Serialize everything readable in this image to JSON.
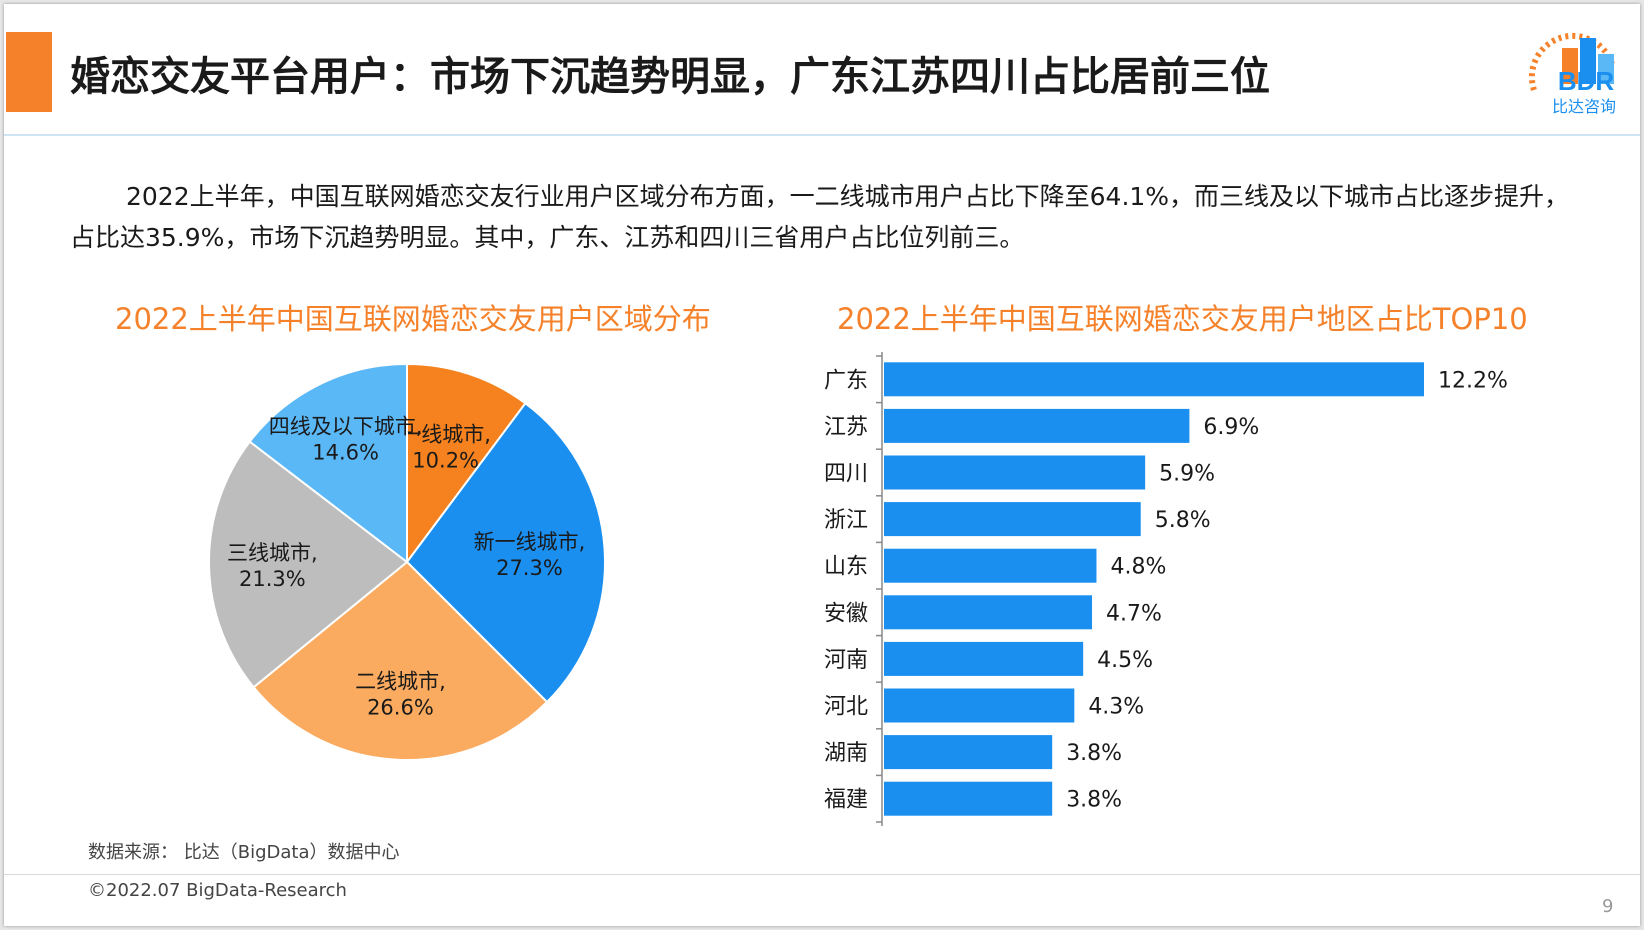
{
  "header": {
    "title": "婚恋交友平台用户：市场下沉趋势明显，广东江苏四川占比居前三位",
    "logo_text": "BDR",
    "logo_subtext": "比达咨询"
  },
  "intro": {
    "text": "2022上半年，中国互联网婚恋交友行业用户区域分布方面，一二线城市用户占比下降至64.1%，而三线及以下城市占比逐步提升，占比达35.9%，市场下沉趋势明显。其中，广东、江苏和四川三省用户占比位列前三。"
  },
  "chart_data": [
    {
      "type": "pie",
      "title": "2022上半年中国互联网婚恋交友用户区域分布",
      "slices": [
        {
          "label": "一线城市",
          "value": 10.2,
          "display": "10.2%",
          "color": "#f5821f"
        },
        {
          "label": "新一线城市",
          "value": 27.3,
          "display": "27.3%",
          "color": "#1a8ff0"
        },
        {
          "label": "二线城市",
          "value": 26.6,
          "display": "26.6%",
          "color": "#fbab5f"
        },
        {
          "label": "三线城市",
          "value": 21.3,
          "display": "21.3%",
          "color": "#bdbdbd"
        },
        {
          "label": "四线及以下城市",
          "value": 14.6,
          "display": "14.6%",
          "color": "#5bb8f7"
        }
      ]
    },
    {
      "type": "bar",
      "orientation": "horizontal",
      "title": "2022上半年中国互联网婚恋交友用户地区占比TOP10",
      "categories": [
        "广东",
        "江苏",
        "四川",
        "浙江",
        "山东",
        "安徽",
        "河南",
        "河北",
        "湖南",
        "福建"
      ],
      "values": [
        12.2,
        6.9,
        5.9,
        5.8,
        4.8,
        4.7,
        4.5,
        4.3,
        3.8,
        3.8
      ],
      "value_labels": [
        "12.2%",
        "6.9%",
        "5.9%",
        "5.8%",
        "4.8%",
        "4.7%",
        "4.5%",
        "4.3%",
        "3.8%",
        "3.8%"
      ],
      "bar_color": "#1a8ff0"
    }
  ],
  "footer": {
    "source": "数据来源： 比达（BigData）数据中心",
    "copyright": "©2022.07 BigData-Research",
    "page": "9"
  }
}
